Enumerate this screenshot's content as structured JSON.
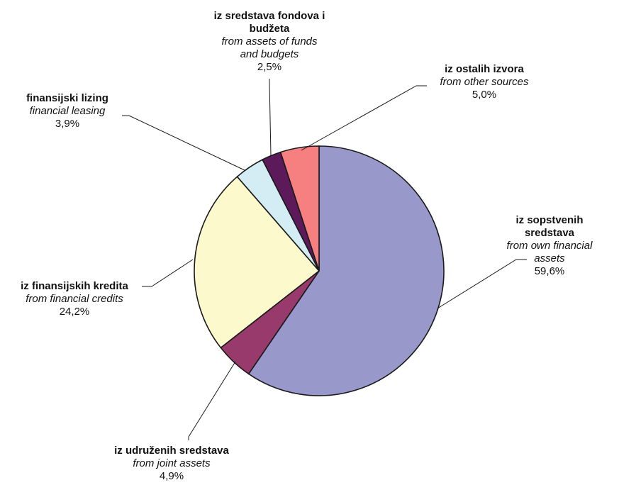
{
  "chart_data": {
    "type": "pie",
    "title": "",
    "start_angle_deg": 0,
    "direction": "clockwise",
    "slices": [
      {
        "label_sr": [
          "iz sopstvenih",
          "sredstava"
        ],
        "label_en": [
          "from own financial",
          "assets"
        ],
        "value": 59.6,
        "value_label": "59,6%",
        "color": "#9898cb"
      },
      {
        "label_sr": [
          "iz udruženih sredstava"
        ],
        "label_en": [
          "from joint assets"
        ],
        "value": 4.9,
        "value_label": "4,9%",
        "color": "#983a6b"
      },
      {
        "label_sr": [
          "iz finansijskih kredita"
        ],
        "label_en": [
          "from financial credits"
        ],
        "value": 24.2,
        "value_label": "24,2%",
        "color": "#fcf9cd"
      },
      {
        "label_sr": [
          "finansijski lizing"
        ],
        "label_en": [
          "financial leasing"
        ],
        "value": 3.9,
        "value_label": "3,9%",
        "color": "#d4ecf4"
      },
      {
        "label_sr": [
          "iz sredstava fondova i",
          "budžeta"
        ],
        "label_en": [
          "from assets of funds",
          "and budgets"
        ],
        "value": 2.5,
        "value_label": "2,5%",
        "color": "#5d1a5b"
      },
      {
        "label_sr": [
          "iz ostalih izvora"
        ],
        "label_en": [
          "from other sources"
        ],
        "value": 5.0,
        "value_label": "5,0%",
        "color": "#f68080"
      }
    ]
  }
}
